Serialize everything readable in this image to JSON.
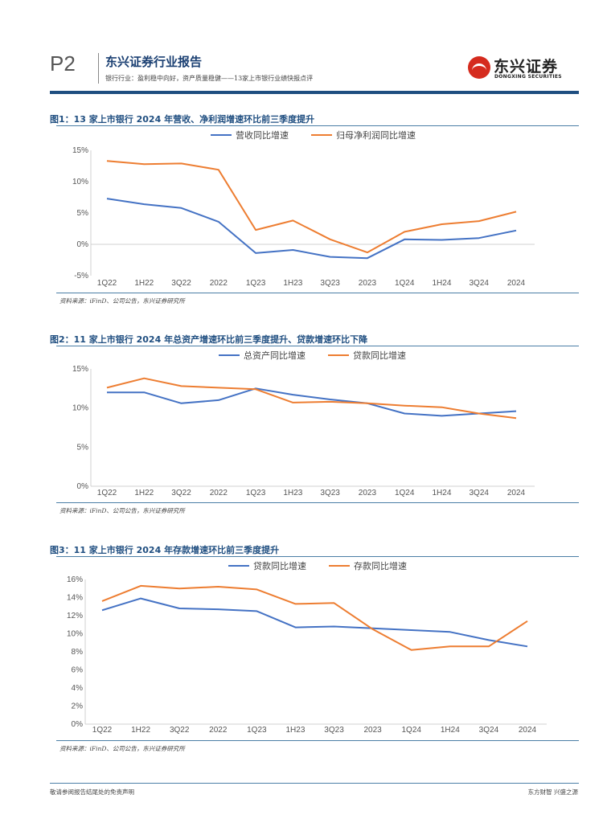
{
  "header": {
    "page_number": "P2",
    "report_title": "东兴证券行业报告",
    "subtitle": "银行行业：盈利稳中向好，资产质量稳健——13家上市银行业绩快报点评",
    "logo_cn": "东兴证券",
    "logo_en": "DONGXING SECURITIES"
  },
  "colors": {
    "blue": "#4472c4",
    "orange": "#ed7d31",
    "brand": "#1f4e80",
    "logo_red": "#d52b1e"
  },
  "figures": [
    {
      "title": "图1：13 家上市银行 2024 年营收、净利润增速环比前三季度提升",
      "source": "资料来源：iFinD、公司公告，东兴证券研究所"
    },
    {
      "title": "图2：11 家上市银行 2024 年总资产增速环比前三季度提升、贷款增速环比下降",
      "source": "资料来源：iFinD、公司公告，东兴证券研究所"
    },
    {
      "title": "图3：11 家上市银行 2024 年存款增速环比前三季度提升",
      "source": "资料来源：iFinD、公司公告，东兴证券研究所"
    }
  ],
  "chart_data": [
    {
      "type": "line",
      "title": "图1：13 家上市银行 2024 年营收、净利润增速环比前三季度提升",
      "categories": [
        "1Q22",
        "1H22",
        "3Q22",
        "2022",
        "1Q23",
        "1H23",
        "3Q23",
        "2023",
        "1Q24",
        "1H24",
        "3Q24",
        "2024"
      ],
      "yticks": [
        "-5%",
        "0%",
        "5%",
        "10%",
        "15%"
      ],
      "ylim": [
        -5,
        15
      ],
      "xlabel": "",
      "ylabel": "",
      "legend": "top-right",
      "series": [
        {
          "name": "营收同比增速",
          "color": "#4472c4",
          "values": [
            7.3,
            6.4,
            5.8,
            3.6,
            -1.4,
            -0.9,
            -2.0,
            -2.2,
            0.8,
            0.7,
            1.0,
            2.2
          ]
        },
        {
          "name": "归母净利润同比增速",
          "color": "#ed7d31",
          "values": [
            13.3,
            12.8,
            12.9,
            11.9,
            2.3,
            3.8,
            0.8,
            -1.3,
            2.0,
            3.2,
            3.7,
            5.2
          ]
        }
      ]
    },
    {
      "type": "line",
      "title": "图2：11 家上市银行 2024 年总资产增速环比前三季度提升、贷款增速环比下降",
      "categories": [
        "1Q22",
        "1H22",
        "3Q22",
        "2022",
        "1Q23",
        "1H23",
        "3Q23",
        "2023",
        "1Q24",
        "1H24",
        "3Q24",
        "2024"
      ],
      "yticks": [
        "0%",
        "5%",
        "10%",
        "15%"
      ],
      "ylim": [
        0,
        15
      ],
      "xlabel": "",
      "ylabel": "",
      "legend": "top-right",
      "series": [
        {
          "name": "总资产同比增速",
          "color": "#4472c4",
          "values": [
            12.0,
            12.0,
            10.6,
            11.0,
            12.5,
            11.7,
            11.1,
            10.6,
            9.3,
            9.0,
            9.3,
            9.6
          ]
        },
        {
          "name": "贷款同比增速",
          "color": "#ed7d31",
          "values": [
            12.6,
            13.8,
            12.8,
            12.6,
            12.4,
            10.7,
            10.8,
            10.6,
            10.3,
            10.1,
            9.3,
            8.7
          ]
        }
      ]
    },
    {
      "type": "line",
      "title": "图3：11 家上市银行 2024 年存款增速环比前三季度提升",
      "categories": [
        "1Q22",
        "1H22",
        "3Q22",
        "2022",
        "1Q23",
        "1H23",
        "3Q23",
        "2023",
        "1Q24",
        "1H24",
        "3Q24",
        "2024"
      ],
      "yticks": [
        "0%",
        "2%",
        "4%",
        "6%",
        "8%",
        "10%",
        "12%",
        "14%",
        "16%"
      ],
      "ylim": [
        0,
        16
      ],
      "xlabel": "",
      "ylabel": "",
      "legend": "top-right",
      "series": [
        {
          "name": "贷款同比增速",
          "color": "#4472c4",
          "values": [
            12.6,
            13.9,
            12.8,
            12.7,
            12.5,
            10.7,
            10.8,
            10.6,
            10.4,
            10.2,
            9.3,
            8.6
          ]
        },
        {
          "name": "存款同比增速",
          "color": "#ed7d31",
          "values": [
            13.6,
            15.3,
            15.0,
            15.2,
            14.9,
            13.3,
            13.4,
            10.5,
            8.2,
            8.6,
            8.6,
            11.4
          ]
        }
      ]
    }
  ],
  "footer": {
    "left": "敬请参阅报告结尾处的免责声明",
    "right": "东方财智 兴盛之源"
  }
}
